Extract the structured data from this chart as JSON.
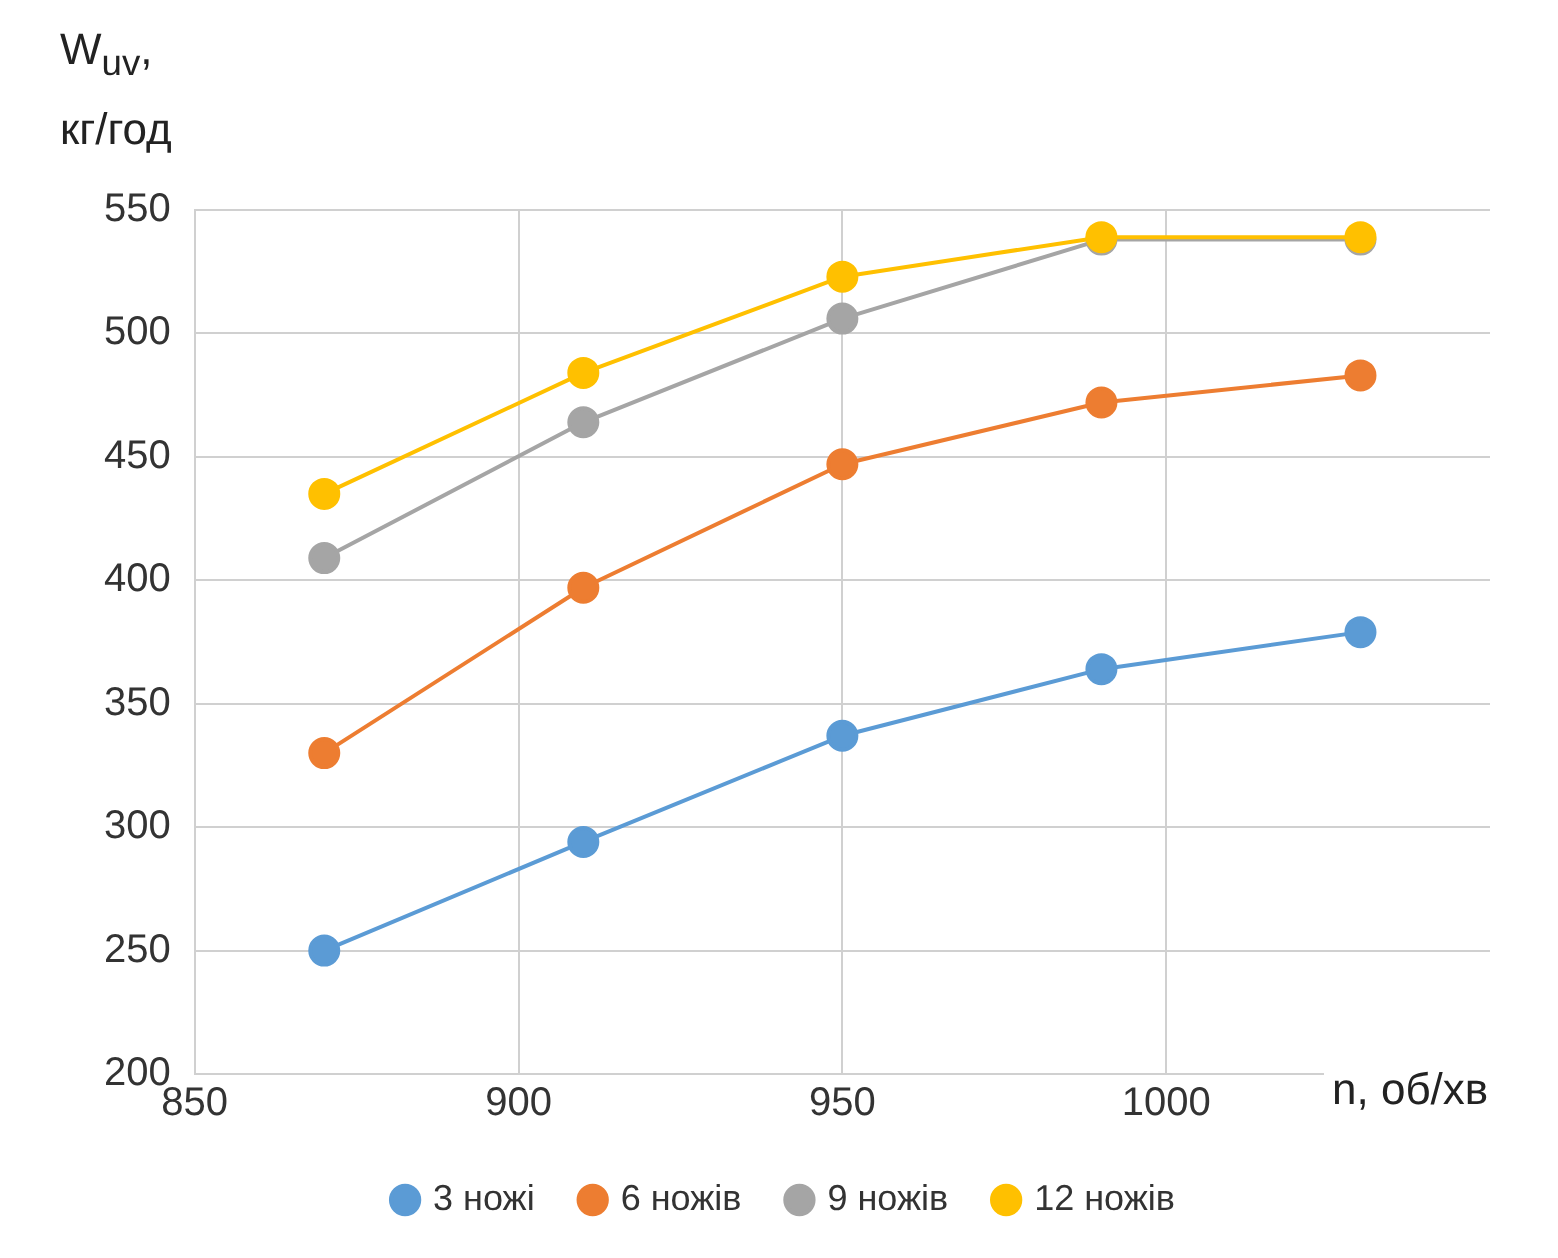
{
  "chart_data": {
    "type": "line",
    "xlabel": "n, об/хв",
    "ylabel": "W$_{uv}$, кг/год",
    "x": [
      870,
      910,
      950,
      990,
      1030
    ],
    "series": [
      {
        "name": "3 ножі",
        "color": "#5b9bd5",
        "values": [
          250,
          294,
          337,
          364,
          379
        ]
      },
      {
        "name": "6 ножів",
        "color": "#ed7d31",
        "values": [
          330,
          397,
          447,
          472,
          483
        ]
      },
      {
        "name": "9 ножів",
        "color": "#a5a5a5",
        "values": [
          409,
          464,
          506,
          538,
          538
        ]
      },
      {
        "name": "12 ножів",
        "color": "#ffc000",
        "values": [
          435,
          484,
          523,
          539,
          539
        ]
      }
    ],
    "xlim": [
      850,
      1050
    ],
    "xticks": [
      850,
      900,
      950,
      1000
    ],
    "ylim": [
      200,
      550
    ],
    "yticks": [
      200,
      250,
      300,
      350,
      400,
      450,
      500,
      550
    ],
    "grid": true,
    "legend": "bottom",
    "marker": "circle",
    "line_style": "solid"
  }
}
